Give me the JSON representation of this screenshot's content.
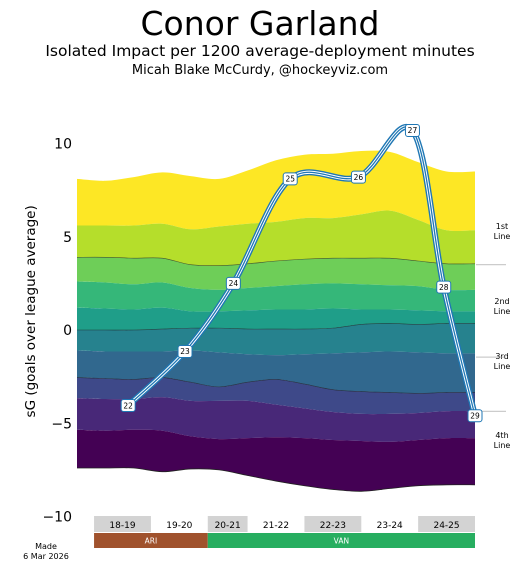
{
  "header": {
    "title": "Conor Garland",
    "subtitle": "Isolated Impact per 1200 average-deployment minutes",
    "byline": "Micah Blake McCurdy, @hockeyviz.com"
  },
  "made": {
    "line1": "Made",
    "line2": "6 Mar 2026"
  },
  "chart_data": {
    "type": "area",
    "title": "Conor Garland",
    "subtitle": "Isolated Impact per 1200 average-deployment minutes",
    "ylabel": "sG (goals over league average)",
    "xlabel": "",
    "ylim": [
      -10,
      12
    ],
    "yticks": [
      10,
      5,
      0,
      -5,
      -10
    ],
    "grid": false,
    "x": [
      0.0,
      0.5,
      1.0,
      1.5,
      2.0,
      2.5,
      3.0,
      3.5,
      4.0,
      4.5,
      5.0,
      5.5,
      6.0,
      6.5,
      7.0
    ],
    "band_boundaries": [
      [
        8.1,
        8.0,
        8.2,
        8.45,
        8.25,
        8.1,
        8.55,
        9.1,
        9.4,
        9.45,
        9.6,
        9.55,
        9.0,
        8.5,
        8.5
      ],
      [
        5.6,
        5.6,
        5.6,
        5.7,
        5.4,
        5.55,
        5.7,
        5.8,
        6.0,
        6.0,
        6.2,
        6.4,
        5.9,
        5.35,
        5.35
      ],
      [
        3.9,
        3.9,
        3.85,
        3.85,
        3.5,
        3.45,
        3.55,
        3.7,
        3.8,
        3.85,
        3.85,
        3.85,
        3.7,
        3.55,
        3.55
      ],
      [
        2.6,
        2.55,
        2.45,
        2.55,
        2.25,
        2.15,
        2.25,
        2.35,
        2.45,
        2.5,
        2.45,
        2.4,
        2.35,
        2.15,
        2.15
      ],
      [
        1.2,
        1.15,
        1.1,
        1.2,
        1.0,
        1.0,
        1.05,
        1.1,
        1.1,
        1.15,
        1.1,
        1.1,
        1.05,
        1.0,
        1.0
      ],
      [
        0.0,
        0.0,
        0.0,
        0.05,
        0.1,
        0.1,
        0.05,
        0.05,
        0.05,
        0.1,
        0.3,
        0.35,
        0.3,
        0.35,
        0.35
      ],
      [
        -1.1,
        -1.15,
        -1.15,
        -1.15,
        -1.1,
        -1.2,
        -1.3,
        -1.35,
        -1.3,
        -1.25,
        -1.2,
        -1.15,
        -1.2,
        -1.25,
        -1.25
      ],
      [
        -2.55,
        -2.6,
        -2.65,
        -2.55,
        -2.8,
        -3.05,
        -2.8,
        -2.65,
        -2.9,
        -3.2,
        -3.3,
        -3.35,
        -3.4,
        -3.35,
        -3.35
      ],
      [
        -3.65,
        -3.7,
        -3.7,
        -3.6,
        -3.8,
        -3.8,
        -3.8,
        -4.0,
        -4.2,
        -4.4,
        -4.5,
        -4.5,
        -4.45,
        -4.35,
        -4.35
      ],
      [
        -5.35,
        -5.4,
        -5.35,
        -5.4,
        -5.7,
        -5.85,
        -5.8,
        -5.75,
        -5.8,
        -5.9,
        -5.95,
        -6.0,
        -5.9,
        -5.8,
        -5.8
      ],
      [
        -7.4,
        -7.4,
        -7.4,
        -7.6,
        -7.45,
        -7.5,
        -7.8,
        -8.1,
        -8.35,
        -8.55,
        -8.65,
        -8.5,
        -8.35,
        -8.3,
        -8.3
      ]
    ],
    "band_colors": [
      "#fde725",
      "#b5de2b",
      "#6ece58",
      "#35b779",
      "#1f9e89",
      "#26828e",
      "#31688e",
      "#3e4989",
      "#482878",
      "#440154"
    ],
    "divider_indices": [
      2,
      5,
      7
    ],
    "line_labels": [
      {
        "label": "1st\nLine",
        "y": 5.3
      },
      {
        "label": "2nd\nLine",
        "y": 1.3
      },
      {
        "label": "3rd\nLine",
        "y": -1.65
      },
      {
        "label": "4th\nLine",
        "y": -5.9
      }
    ],
    "games_series": {
      "name": "",
      "points": [
        {
          "x": 0.9,
          "y": -4.05,
          "label": "22"
        },
        {
          "x": 1.9,
          "y": -1.15,
          "label": "23"
        },
        {
          "x": 2.75,
          "y": 2.5,
          "label": "24"
        },
        {
          "x": 3.75,
          "y": 8.1,
          "label": "25"
        },
        {
          "x": 4.95,
          "y": 8.2,
          "label": "26"
        },
        {
          "x": 5.9,
          "y": 10.7,
          "label": "27"
        },
        {
          "x": 6.45,
          "y": 2.3,
          "label": "28"
        },
        {
          "x": 7.0,
          "y": -4.6,
          "label": "29"
        }
      ]
    },
    "seasons": [
      {
        "label": "18-19",
        "x0": 0.3,
        "x1": 1.3
      },
      {
        "label": "19-20",
        "x0": 1.3,
        "x1": 2.3
      },
      {
        "label": "20-21",
        "x0": 2.3,
        "x1": 3.0
      },
      {
        "label": "21-22",
        "x0": 3.0,
        "x1": 4.0
      },
      {
        "label": "22-23",
        "x0": 4.0,
        "x1": 5.0
      },
      {
        "label": "23-24",
        "x0": 5.0,
        "x1": 6.0
      },
      {
        "label": "24-25",
        "x0": 6.0,
        "x1": 7.0
      }
    ],
    "teams": [
      {
        "label": "ARI",
        "x0": 0.3,
        "x1": 2.3,
        "color": "#a0522d"
      },
      {
        "label": "VAN",
        "x0": 2.3,
        "x1": 7.0,
        "color": "#27ae60"
      }
    ]
  }
}
